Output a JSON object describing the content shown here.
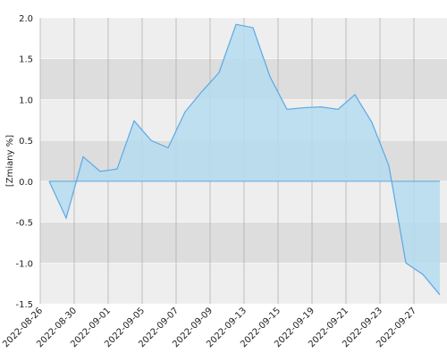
{
  "chart_data": {
    "type": "area",
    "y_label": "[Zmiany %]",
    "categories": [
      "2022-08-26",
      null,
      "2022-08-30",
      null,
      "2022-09-01",
      null,
      "2022-09-05",
      null,
      "2022-09-07",
      null,
      "2022-09-09",
      null,
      "2022-09-13",
      null,
      "2022-09-15",
      null,
      "2022-09-19",
      null,
      "2022-09-21",
      null,
      "2022-09-23",
      null,
      "2022-09-27",
      null
    ],
    "values": [
      0,
      -0.45,
      0.3,
      0.12,
      0.15,
      0.74,
      0.5,
      0.41,
      0.85,
      1.1,
      1.33,
      1.92,
      1.88,
      1.28,
      0.88,
      0.9,
      0.91,
      0.88,
      1.06,
      0.72,
      0.19,
      -1.0,
      -1.14,
      -1.39
    ],
    "color": "#5aa9e6",
    "fill": "#b5dcee",
    "ylim": [
      -1.5,
      2.0
    ],
    "yticks": [
      {
        "value": 2.0,
        "label": "2.0"
      },
      1.5,
      {
        "value": 1.0,
        "label": "1.0"
      },
      0.5,
      {
        "value": 0,
        "label": "0.0"
      },
      -0.5,
      {
        "value": -1.0,
        "label": "-1.0"
      },
      -1.5
    ],
    "grid": true
  }
}
